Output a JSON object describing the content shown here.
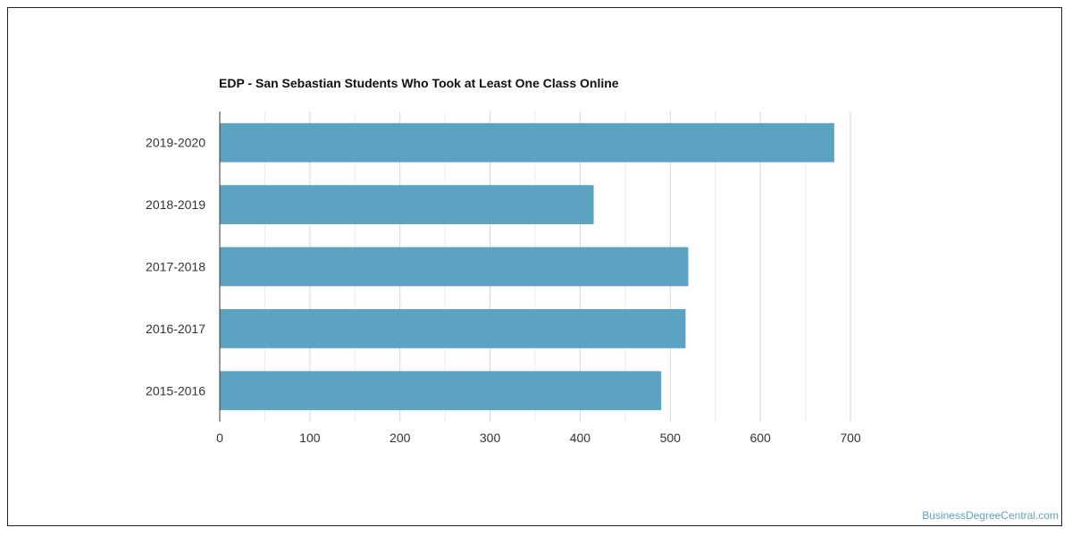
{
  "chart_data": {
    "type": "bar",
    "orientation": "horizontal",
    "title": "EDP - San Sebastian Students Who Took at Least One Class Online",
    "categories": [
      "2019-2020",
      "2018-2019",
      "2017-2018",
      "2016-2017",
      "2015-2016"
    ],
    "values": [
      682,
      415,
      520,
      517,
      490
    ],
    "xlim": [
      0,
      700
    ],
    "xticks": [
      "0",
      "100",
      "200",
      "300",
      "400",
      "500",
      "600",
      "700"
    ],
    "grid": true,
    "bar_color": "#5ba3c0"
  },
  "watermark": "BusinessDegreeCentral.com"
}
